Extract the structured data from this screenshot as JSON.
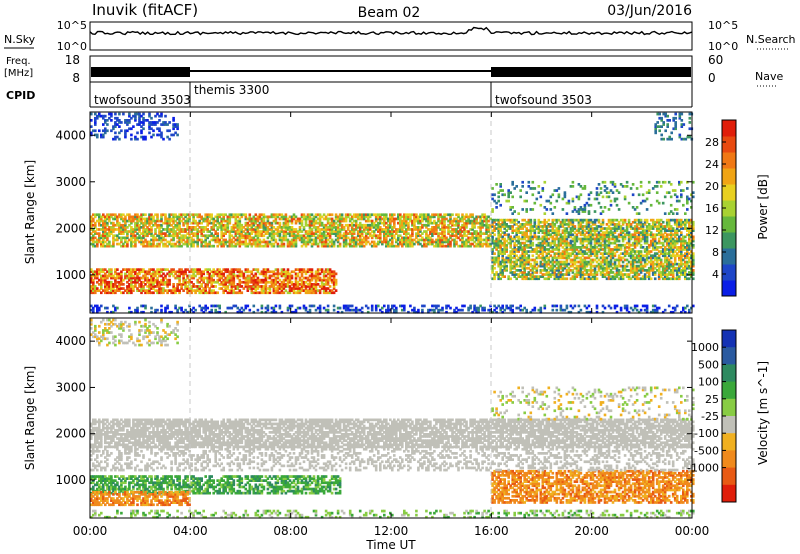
{
  "header": {
    "station": "Inuvik (fitACF)",
    "beam": "Beam 02",
    "date": "03/Jun/2016"
  },
  "nsky_panel": {
    "left_label": "N.Sky",
    "left_ticks": [
      "10^5",
      "10^0"
    ],
    "right_ticks": [
      "10^5",
      "10^0"
    ],
    "right_label": "N.Search"
  },
  "freq_panel": {
    "left_label_line1": "Freq.",
    "left_label_line2": "[MHz]",
    "left_ticks": [
      "18",
      "8"
    ],
    "right_ticks": [
      "60",
      "0"
    ],
    "right_label": "Nave"
  },
  "cpid_panel": {
    "label": "CPID",
    "modes": [
      {
        "name": "twofsound 3503",
        "start_hour": 0
      },
      {
        "name": "themis 3300",
        "start_hour": 4
      },
      {
        "name": "twofsound 3503",
        "start_hour": 16
      }
    ]
  },
  "chart_data": [
    {
      "type": "heatmap",
      "parameter": "Power",
      "ylabel": "Slant Range [km]",
      "ylim": [
        180,
        4500
      ],
      "y_ticks": [
        1000,
        2000,
        3000,
        4000
      ],
      "xlim_hours": [
        0,
        24
      ],
      "colorbar": {
        "label": "Power [dB]",
        "range": [
          0,
          32
        ],
        "ticks": [
          4,
          8,
          12,
          16,
          20,
          24,
          28
        ],
        "colors": [
          "#0a1ee6",
          "#1e46c8",
          "#2a6e9a",
          "#3c9660",
          "#66b83c",
          "#a8d232",
          "#e8d020",
          "#f0a414",
          "#f07814",
          "#e84a10",
          "#e01e0a"
        ]
      },
      "echo_bands": [
        {
          "start_hour": 0,
          "end_hour": 9.8,
          "range_km": [
            600,
            1100
          ],
          "power_db": 22
        },
        {
          "start_hour": 0,
          "end_hour": 16,
          "range_km": [
            1600,
            2300
          ],
          "power_db": 16
        },
        {
          "start_hour": 16,
          "end_hour": 24,
          "range_km": [
            900,
            2200
          ],
          "power_db": 14
        }
      ]
    },
    {
      "type": "heatmap",
      "parameter": "Velocity",
      "ylabel": "Slant Range [km]",
      "ylim": [
        180,
        4500
      ],
      "y_ticks": [
        1000,
        2000,
        3000,
        4000
      ],
      "xlim_hours": [
        0,
        24
      ],
      "colorbar": {
        "label": "Velocity [m s^-1]",
        "tick_labels": [
          "1000",
          "500",
          "100",
          "25",
          "-25",
          "-100",
          "-500",
          "-1000"
        ],
        "colors": [
          "#1432b4",
          "#2a5aa0",
          "#2e8a60",
          "#3aa83a",
          "#88cc44",
          "#c0c0b8",
          "#f0b020",
          "#f08a1c",
          "#e85a14",
          "#e01e0a"
        ]
      },
      "echo_bands": [
        {
          "start_hour": 0,
          "end_hour": 10,
          "range_km": [
            700,
            1100
          ],
          "velocity": "100 to 500"
        },
        {
          "start_hour": 0,
          "end_hour": 4,
          "range_km": [
            450,
            750
          ],
          "velocity": "-100 to -500"
        },
        {
          "start_hour": 0,
          "end_hour": 24,
          "range_km": [
            1700,
            2300
          ],
          "velocity": "-25 to 25"
        },
        {
          "start_hour": 16,
          "end_hour": 24,
          "range_km": [
            500,
            1200
          ],
          "velocity": "-100 to -500"
        }
      ]
    }
  ],
  "x_axis": {
    "label": "Time UT",
    "tick_labels": [
      "00:00",
      "04:00",
      "08:00",
      "12:00",
      "16:00",
      "20:00",
      "00:00"
    ]
  }
}
